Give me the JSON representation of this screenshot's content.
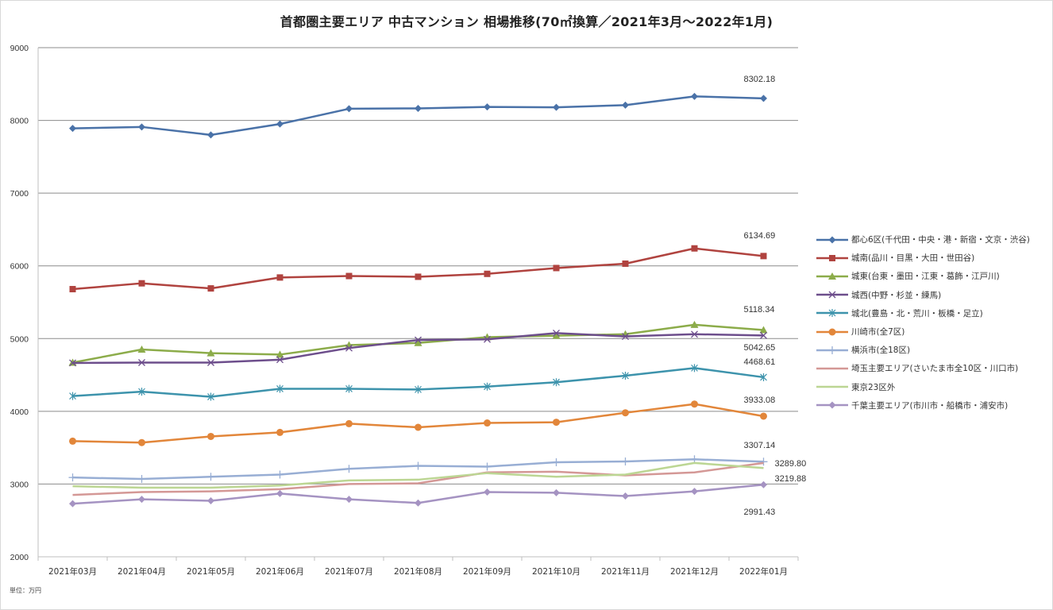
{
  "chart_data": {
    "type": "line",
    "title": "首都圏主要エリア 中古マンション 相場推移(70㎡換算／2021年3月～2022年1月)",
    "xlabel": "",
    "ylabel": "",
    "unit_note": "単位：万円",
    "ylim": [
      2000,
      9000
    ],
    "yticks": [
      2000,
      3000,
      4000,
      5000,
      6000,
      7000,
      8000,
      9000
    ],
    "grid": true,
    "legend_position": "right",
    "categories": [
      "2021年03月",
      "2021年04月",
      "2021年05月",
      "2021年06月",
      "2021年07月",
      "2021年08月",
      "2021年09月",
      "2021年10月",
      "2021年11月",
      "2021年12月",
      "2022年01月"
    ],
    "series": [
      {
        "name": "都心6区(千代田・中央・港・新宿・文京・渋谷)",
        "color": "#4a72a8",
        "marker": "diamond",
        "values": [
          7890,
          7910,
          7800,
          7950,
          8160,
          8165,
          8185,
          8180,
          8210,
          8330,
          8302.18
        ],
        "end_label": "8302.18"
      },
      {
        "name": "城南(品川・目黒・大田・世田谷)",
        "color": "#b0433f",
        "marker": "square",
        "values": [
          5680,
          5760,
          5690,
          5840,
          5860,
          5850,
          5890,
          5970,
          6030,
          6240,
          6134.69
        ],
        "end_label": "6134.69"
      },
      {
        "name": "城東(台東・墨田・江東・葛飾・江戸川)",
        "color": "#8cac4a",
        "marker": "triangle",
        "values": [
          4670,
          4850,
          4800,
          4780,
          4910,
          4940,
          5020,
          5040,
          5060,
          5190,
          5118.34
        ],
        "end_label": "5118.34"
      },
      {
        "name": "城西(中野・杉並・練馬)",
        "color": "#6d4e8c",
        "marker": "x",
        "values": [
          4665,
          4670,
          4670,
          4710,
          4870,
          4980,
          4990,
          5075,
          5030,
          5060,
          5042.65
        ],
        "end_label": "5042.65"
      },
      {
        "name": "城北(豊島・北・荒川・板橋・足立)",
        "color": "#3d93ac",
        "marker": "star",
        "values": [
          4210,
          4270,
          4200,
          4310,
          4310,
          4300,
          4340,
          4400,
          4490,
          4595,
          4468.61
        ],
        "end_label": "4468.61"
      },
      {
        "name": "川崎市(全7区)",
        "color": "#e2863a",
        "marker": "circle",
        "values": [
          3590,
          3570,
          3655,
          3710,
          3830,
          3780,
          3840,
          3850,
          3980,
          4100,
          3933.08
        ],
        "end_label": "3933.08"
      },
      {
        "name": "横浜市(全18区)",
        "color": "#98aed4",
        "marker": "plus",
        "values": [
          3090,
          3070,
          3100,
          3130,
          3210,
          3250,
          3240,
          3300,
          3310,
          3340,
          3307.14
        ],
        "end_label": "3307.14"
      },
      {
        "name": "埼玉主要エリア(さいたま市全10区・川口市)",
        "color": "#d49896",
        "marker": "none",
        "values": [
          2850,
          2890,
          2900,
          2930,
          3000,
          3010,
          3160,
          3170,
          3120,
          3160,
          3289.8
        ],
        "end_label": "3289.80"
      },
      {
        "name": "東京23区外",
        "color": "#bcd693",
        "marker": "none",
        "values": [
          2970,
          2950,
          2950,
          2980,
          3050,
          3060,
          3150,
          3100,
          3130,
          3290,
          3219.88
        ],
        "end_label": "3219.88"
      },
      {
        "name": "千葉主要エリア(市川市・船橋市・浦安市)",
        "color": "#a593c2",
        "marker": "diamond",
        "values": [
          2730,
          2790,
          2770,
          2870,
          2790,
          2740,
          2890,
          2880,
          2835,
          2900,
          2991.43
        ],
        "end_label": "2991.43"
      }
    ]
  }
}
